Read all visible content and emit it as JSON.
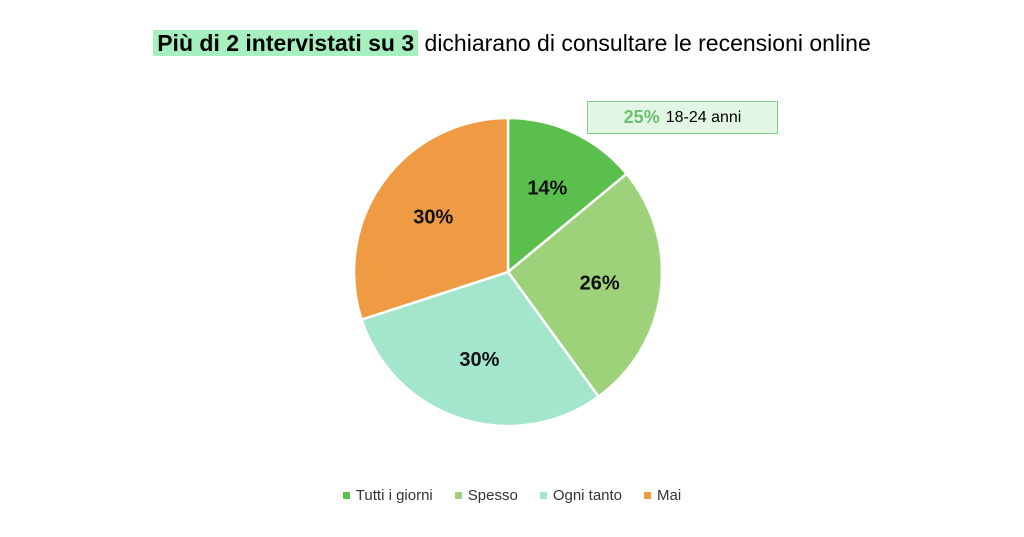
{
  "title": {
    "highlight": "Più di 2 intervistati su 3",
    "rest": "dichiarano di consultare le recensioni online",
    "highlight_color": "#a6f0bf"
  },
  "callout": {
    "percent": "25%",
    "text": "18-24 anni",
    "background": "#e2f6e5",
    "percent_color": "#6cc06e"
  },
  "chart_data": {
    "type": "pie",
    "title": "",
    "slices": [
      {
        "name": "Tutti i giorni",
        "value": 14,
        "label": "14%",
        "color": "#5bbf4e"
      },
      {
        "name": "Spesso",
        "value": 26,
        "label": "26%",
        "color": "#9dd27a"
      },
      {
        "name": "Ogni tanto",
        "value": 30,
        "label": "30%",
        "color": "#a3e6cc"
      },
      {
        "name": "Mai",
        "value": 30,
        "label": "30%",
        "color": "#ef9b44"
      }
    ],
    "start_angle": "12 o'clock",
    "direction": "clockwise",
    "legend_position": "bottom"
  }
}
